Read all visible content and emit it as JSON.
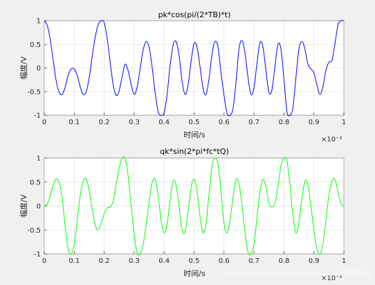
{
  "watermark": "https://blog.csdn.net/weixin_43658963",
  "chart_data": [
    {
      "type": "line",
      "title": "pk*cos(pi/(2*TB)*t)",
      "xlabel": "时间/s",
      "ylabel": "幅度/V",
      "xlim": [
        0,
        0.001
      ],
      "ylim": [
        -1,
        1
      ],
      "x_multiplier": "×10⁻³",
      "xticks": [
        0,
        0.1,
        0.2,
        0.3,
        0.4,
        0.5,
        0.6,
        0.7,
        0.8,
        0.9,
        1
      ],
      "xtick_labels": [
        "0",
        "0.1",
        "0.2",
        "0.3",
        "0.4",
        "0.5",
        "0.6",
        "0.7",
        "0.8",
        "0.9",
        "1"
      ],
      "yticks": [
        -1,
        -0.5,
        0,
        0.5,
        1
      ],
      "ytick_labels": [
        "-1",
        "-0.5",
        "0",
        "0.5",
        "1"
      ],
      "grid": true,
      "color": "#0000ff",
      "series": [
        {
          "x": [
            0,
            0.01,
            0.02,
            0.03,
            0.04,
            0.05,
            0.06,
            0.07,
            0.08,
            0.09,
            0.1,
            0.11,
            0.12,
            0.13,
            0.14,
            0.15,
            0.16,
            0.17,
            0.18,
            0.19,
            0.2,
            0.21,
            0.22,
            0.23,
            0.24,
            0.25,
            0.26,
            0.27,
            0.28,
            0.29,
            0.3,
            0.31,
            0.32,
            0.33,
            0.34,
            0.35,
            0.36,
            0.37,
            0.38,
            0.39,
            0.4,
            0.41,
            0.42,
            0.43,
            0.44,
            0.45,
            0.46,
            0.47,
            0.48,
            0.49,
            0.5,
            0.51,
            0.52,
            0.53,
            0.54,
            0.55,
            0.56,
            0.57,
            0.58,
            0.59,
            0.6,
            0.61,
            0.62,
            0.63,
            0.64,
            0.65,
            0.66,
            0.67,
            0.68,
            0.69,
            0.7,
            0.71,
            0.72,
            0.73,
            0.74,
            0.75,
            0.76,
            0.77,
            0.78,
            0.79,
            0.8,
            0.81,
            0.82,
            0.83,
            0.84,
            0.85,
            0.86,
            0.87,
            0.88,
            0.89,
            0.9,
            0.91,
            0.92,
            0.93,
            0.94,
            0.95,
            0.96,
            0.97,
            0.98,
            0.99,
            1.0
          ],
          "y": [
            1.0,
            0.9,
            0.6,
            0.15,
            -0.28,
            -0.52,
            -0.56,
            -0.4,
            -0.15,
            -0.02,
            -0.02,
            -0.16,
            -0.4,
            -0.56,
            -0.5,
            -0.2,
            0.25,
            0.65,
            0.92,
            1.0,
            0.96,
            0.62,
            0.12,
            -0.35,
            -0.58,
            -0.48,
            -0.18,
            0.08,
            -0.06,
            -0.35,
            -0.56,
            -0.4,
            -0.02,
            0.38,
            0.56,
            0.44,
            0.02,
            -0.52,
            -0.92,
            -1.0,
            -0.95,
            -0.55,
            0.05,
            0.48,
            0.56,
            0.26,
            -0.28,
            -0.56,
            -0.36,
            0.14,
            0.52,
            0.44,
            0.02,
            -0.44,
            -0.56,
            -0.22,
            0.3,
            0.56,
            0.44,
            -0.1,
            -0.58,
            -0.96,
            -1.0,
            -0.86,
            -0.3,
            0.4,
            0.58,
            0.32,
            -0.2,
            -0.56,
            -0.42,
            0.1,
            0.54,
            0.44,
            -0.06,
            -0.52,
            -0.46,
            0.04,
            0.5,
            0.4,
            -0.24,
            -0.92,
            -1.0,
            -0.84,
            -0.2,
            0.4,
            0.56,
            0.4,
            0.08,
            -0.02,
            -0.1,
            -0.36,
            -0.56,
            -0.4,
            -0.05,
            0.12,
            0.16,
            0.5,
            0.9,
            1.0,
            1.0
          ]
        }
      ]
    },
    {
      "type": "line",
      "title": "qk*sin(2*pi*fc*tQ)",
      "xlabel": "时间/s",
      "ylabel": "幅度/V",
      "xlim": [
        0,
        0.001
      ],
      "ylim": [
        -1,
        1
      ],
      "x_multiplier": "×10⁻³",
      "xticks": [
        0,
        0.1,
        0.2,
        0.3,
        0.4,
        0.5,
        0.6,
        0.7,
        0.8,
        0.9,
        1
      ],
      "xtick_labels": [
        "0",
        "0.1",
        "0.2",
        "0.3",
        "0.4",
        "0.5",
        "0.6",
        "0.7",
        "0.8",
        "0.9",
        "1"
      ],
      "yticks": [
        -1,
        -0.5,
        0,
        0.5,
        1
      ],
      "ytick_labels": [
        "-1",
        "-0.5",
        "0",
        "0.5",
        "1"
      ],
      "grid": true,
      "color": "#00ff00",
      "series": [
        {
          "x": [
            0,
            0.01,
            0.02,
            0.03,
            0.04,
            0.05,
            0.06,
            0.07,
            0.08,
            0.09,
            0.1,
            0.11,
            0.12,
            0.13,
            0.14,
            0.15,
            0.16,
            0.17,
            0.18,
            0.19,
            0.2,
            0.21,
            0.22,
            0.23,
            0.24,
            0.25,
            0.26,
            0.27,
            0.28,
            0.29,
            0.3,
            0.31,
            0.32,
            0.33,
            0.34,
            0.35,
            0.36,
            0.37,
            0.38,
            0.39,
            0.4,
            0.41,
            0.42,
            0.43,
            0.44,
            0.45,
            0.46,
            0.47,
            0.48,
            0.49,
            0.5,
            0.51,
            0.52,
            0.53,
            0.54,
            0.55,
            0.56,
            0.57,
            0.58,
            0.59,
            0.6,
            0.61,
            0.62,
            0.63,
            0.64,
            0.65,
            0.66,
            0.67,
            0.68,
            0.69,
            0.7,
            0.71,
            0.72,
            0.73,
            0.74,
            0.75,
            0.76,
            0.77,
            0.78,
            0.79,
            0.8,
            0.81,
            0.82,
            0.83,
            0.84,
            0.85,
            0.86,
            0.87,
            0.88,
            0.89,
            0.9,
            0.91,
            0.92,
            0.93,
            0.94,
            0.95,
            0.96,
            0.97,
            0.98,
            0.99,
            1.0
          ],
          "y": [
            0.0,
            0.04,
            0.22,
            0.44,
            0.57,
            0.48,
            0.15,
            -0.45,
            -0.9,
            -1.0,
            -0.8,
            -0.3,
            0.22,
            0.52,
            0.56,
            0.32,
            -0.06,
            -0.4,
            -0.5,
            -0.36,
            -0.16,
            -0.04,
            -0.02,
            0.1,
            0.44,
            0.8,
            1.0,
            0.98,
            0.62,
            0.0,
            -0.6,
            -0.98,
            -1.0,
            -0.8,
            -0.4,
            0.1,
            0.48,
            0.56,
            0.22,
            -0.3,
            -0.56,
            -0.38,
            0.12,
            0.52,
            0.44,
            -0.02,
            -0.5,
            -0.54,
            -0.12,
            0.38,
            0.56,
            0.3,
            -0.22,
            -0.56,
            -0.36,
            0.26,
            0.84,
            1.0,
            0.86,
            0.3,
            -0.36,
            -0.56,
            -0.3,
            0.18,
            0.56,
            0.46,
            0.02,
            -0.56,
            -0.96,
            -1.0,
            -0.8,
            -0.24,
            0.3,
            0.56,
            0.4,
            0.06,
            -0.02,
            0.06,
            0.4,
            0.84,
            1.0,
            0.94,
            0.44,
            -0.2,
            -0.56,
            -0.34,
            0.16,
            0.52,
            0.44,
            0.0,
            -0.5,
            -0.9,
            -1.0,
            -0.8,
            -0.3,
            0.22,
            0.52,
            0.56,
            0.3,
            0.06,
            0.0
          ]
        }
      ]
    }
  ]
}
